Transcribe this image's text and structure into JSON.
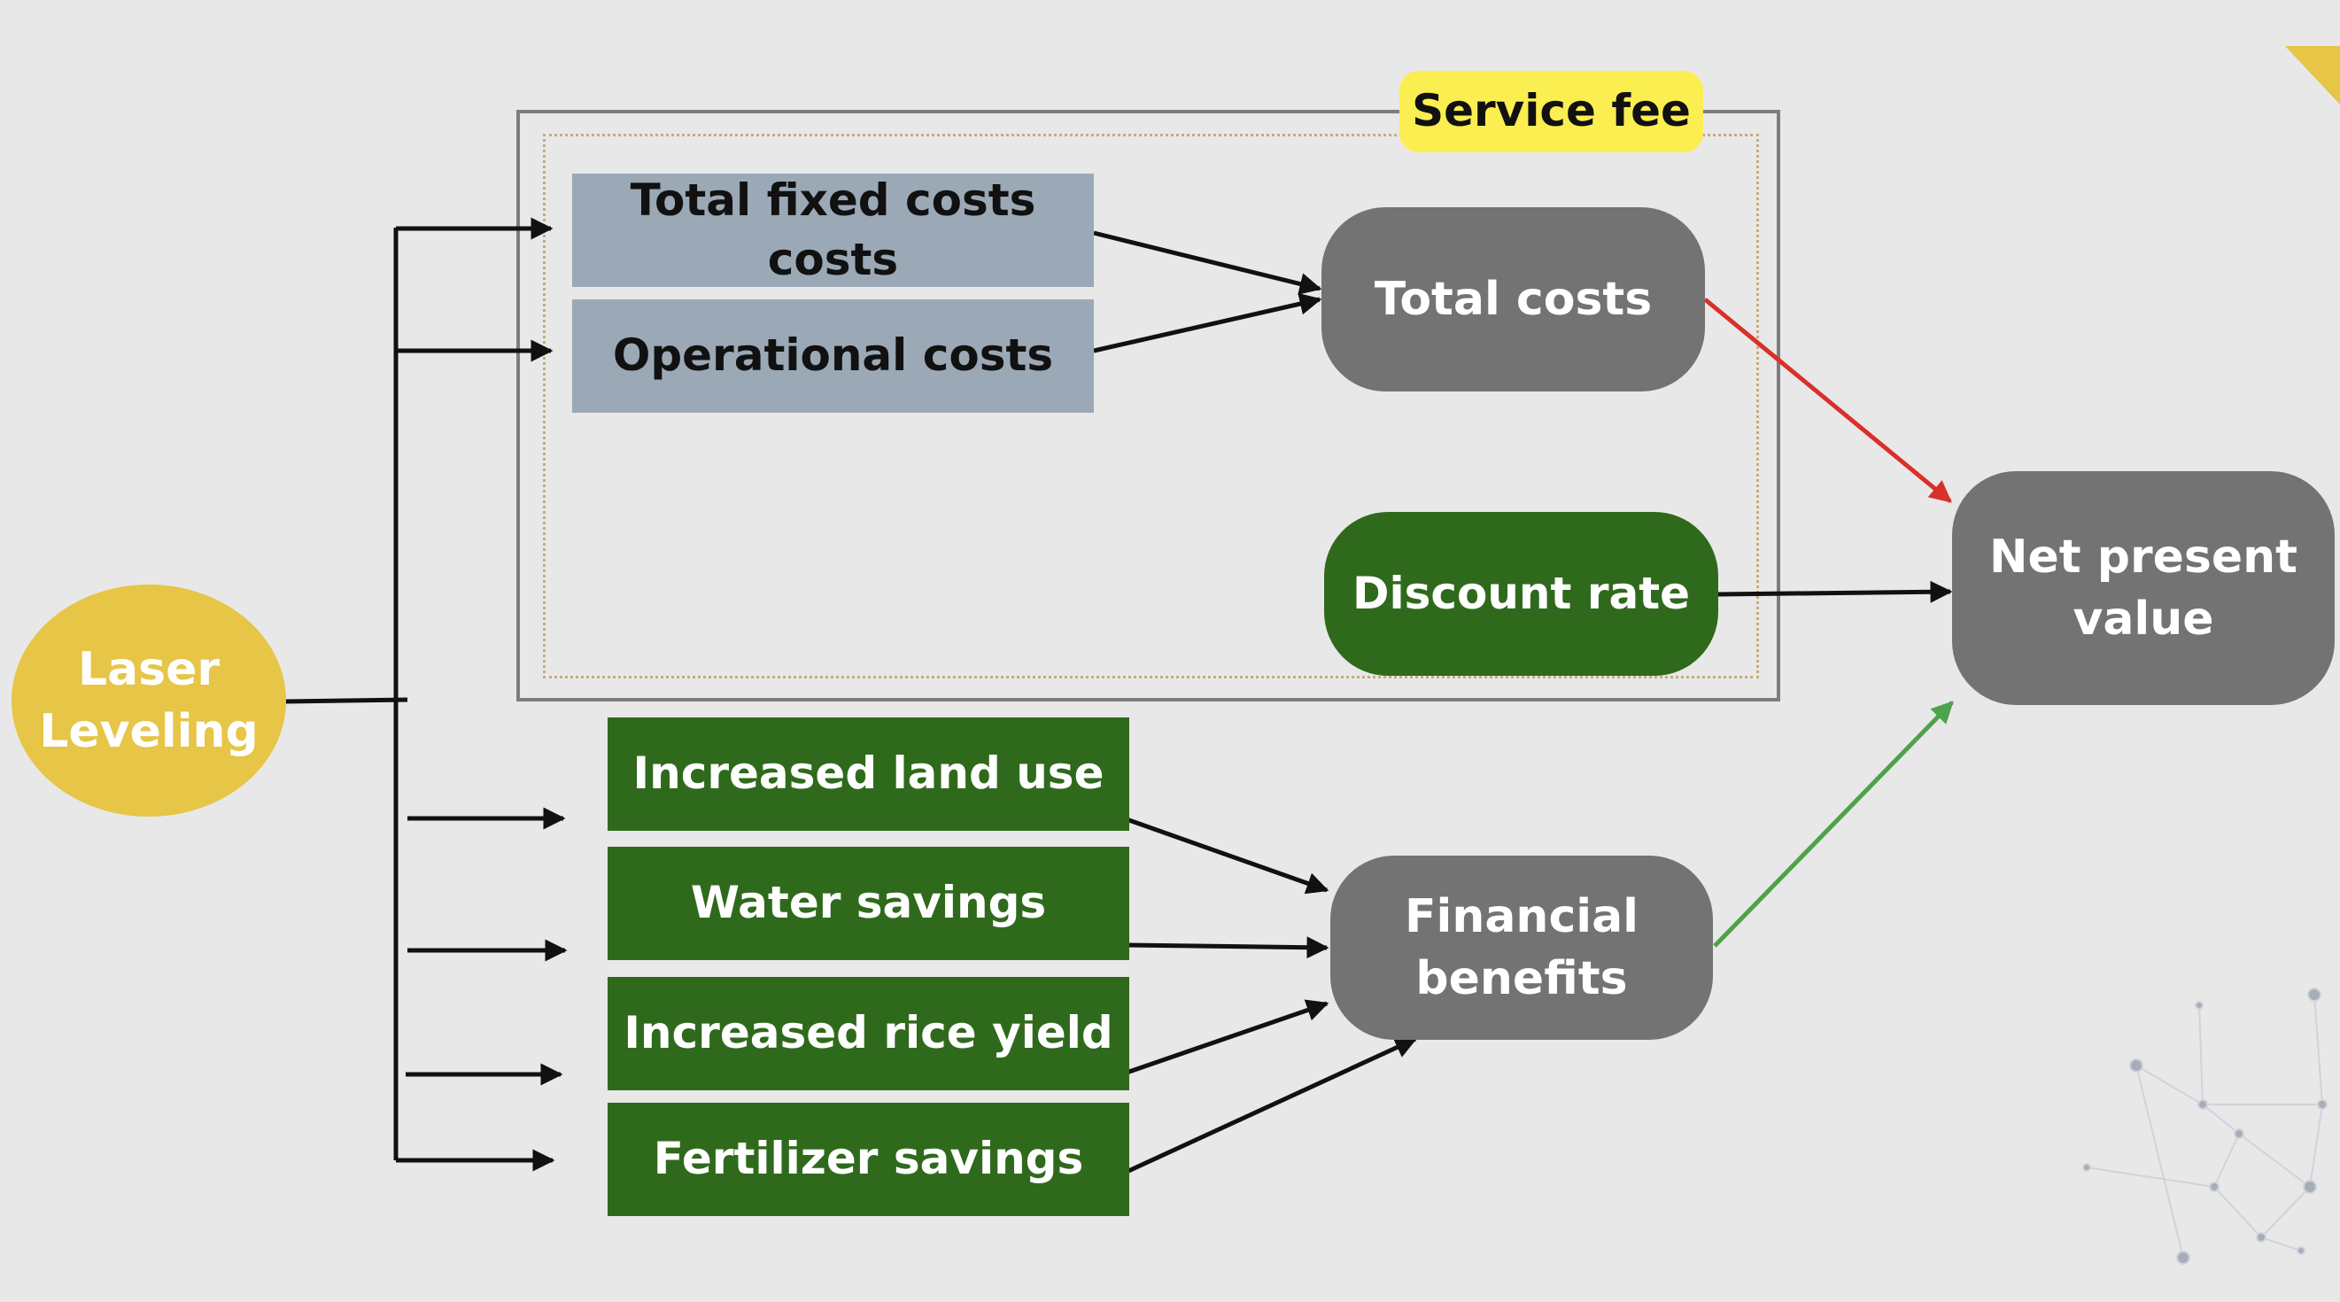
{
  "nodes": {
    "laser_leveling": "Laser\nLeveling",
    "total_fixed_costs": "Total fixed costs costs",
    "operational_costs": "Operational costs",
    "total_costs": "Total costs",
    "discount_rate": "Discount rate",
    "net_present_value": "Net present\nvalue",
    "increased_land_use": "Increased land use",
    "water_savings": "Water savings",
    "increased_rice_yield": "Increased rice yield",
    "fertilizer_savings": "Fertilizer savings",
    "financial_benefits": "Financial\nbenefits"
  },
  "group_label": "Service fee",
  "colors": {
    "background": "#e8e8e8",
    "cost_box": "#9ba8b6",
    "benefit_box": "#2f6a1c",
    "pill_gray": "#737373",
    "laser": "#e6c547",
    "tag": "#fbee50",
    "arrow_negative": "#d9302a",
    "arrow_positive": "#4ea24a",
    "arrow_default": "#111111"
  },
  "edges": [
    {
      "from": "laser_leveling",
      "to": "total_fixed_costs"
    },
    {
      "from": "laser_leveling",
      "to": "operational_costs"
    },
    {
      "from": "laser_leveling",
      "to": "increased_land_use"
    },
    {
      "from": "laser_leveling",
      "to": "water_savings"
    },
    {
      "from": "laser_leveling",
      "to": "increased_rice_yield"
    },
    {
      "from": "laser_leveling",
      "to": "fertilizer_savings"
    },
    {
      "from": "total_fixed_costs",
      "to": "total_costs"
    },
    {
      "from": "operational_costs",
      "to": "total_costs"
    },
    {
      "from": "total_costs",
      "to": "net_present_value",
      "color": "#d9302a"
    },
    {
      "from": "discount_rate",
      "to": "net_present_value"
    },
    {
      "from": "increased_land_use",
      "to": "financial_benefits"
    },
    {
      "from": "water_savings",
      "to": "financial_benefits"
    },
    {
      "from": "increased_rice_yield",
      "to": "financial_benefits"
    },
    {
      "from": "fertilizer_savings",
      "to": "financial_benefits"
    },
    {
      "from": "financial_benefits",
      "to": "net_present_value",
      "color": "#4ea24a"
    }
  ]
}
